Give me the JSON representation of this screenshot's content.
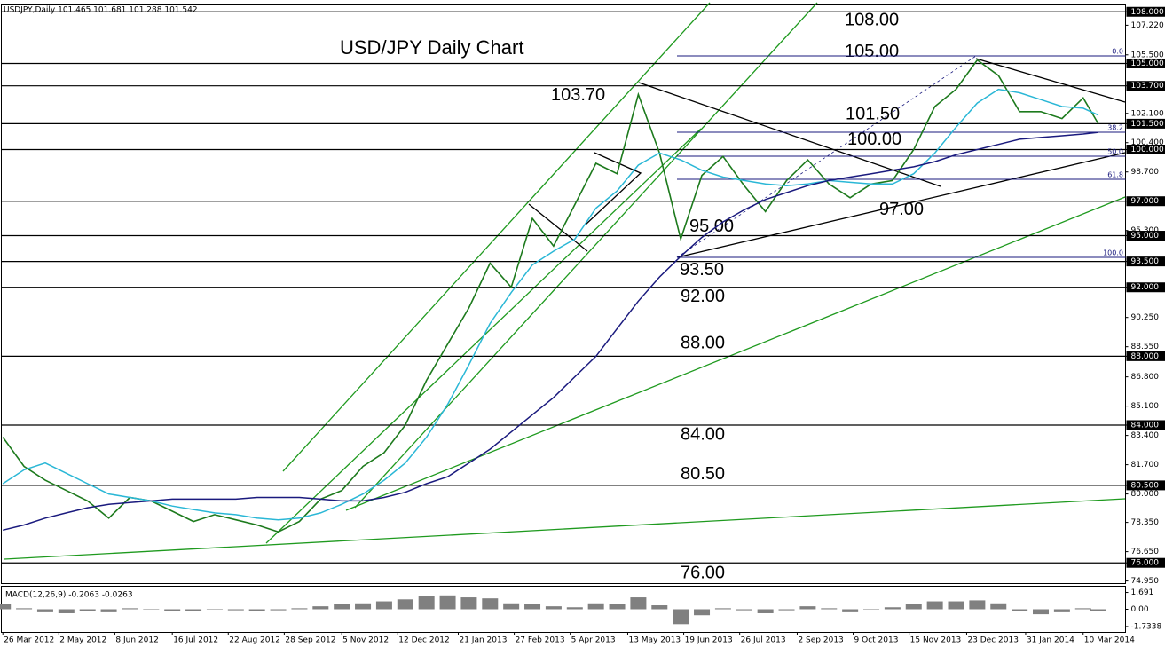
{
  "chart_data": [
    {
      "type": "line",
      "title": "USD/JPY Daily Chart",
      "symbol": "USDJPY,Daily  101.465 101.681 101.288 101.542",
      "x": [
        "2012-03-26",
        "2012-04-09",
        "2012-04-23",
        "2012-05-07",
        "2012-05-21",
        "2012-06-04",
        "2012-06-18",
        "2012-07-02",
        "2012-07-16",
        "2012-07-30",
        "2012-08-13",
        "2012-08-27",
        "2012-09-10",
        "2012-09-24",
        "2012-10-08",
        "2012-10-22",
        "2012-11-05",
        "2012-11-19",
        "2012-12-03",
        "2012-12-17",
        "2012-12-31",
        "2013-01-14",
        "2013-01-28",
        "2013-02-11",
        "2013-02-25",
        "2013-03-11",
        "2013-03-25",
        "2013-04-08",
        "2013-04-22",
        "2013-05-06",
        "2013-05-20",
        "2013-06-03",
        "2013-06-17",
        "2013-07-01",
        "2013-07-15",
        "2013-07-29",
        "2013-08-12",
        "2013-08-26",
        "2013-09-09",
        "2013-09-23",
        "2013-10-07",
        "2013-10-21",
        "2013-11-04",
        "2013-11-18",
        "2013-12-02",
        "2013-12-16",
        "2013-12-30",
        "2014-01-13",
        "2014-01-27",
        "2014-02-10",
        "2014-02-24",
        "2014-03-10",
        "2014-03-20"
      ],
      "series": [
        {
          "color": "#1d7a1d",
          "values": [
            83.3,
            81.6,
            80.8,
            80.2,
            79.6,
            78.6,
            79.8,
            79.6,
            79.0,
            78.4,
            78.8,
            78.5,
            78.2,
            77.8,
            78.4,
            79.7,
            80.2,
            81.6,
            82.4,
            84.0,
            86.6,
            88.7,
            90.8,
            93.4,
            92.0,
            96.0,
            94.4,
            96.8,
            99.2,
            98.6,
            103.2,
            99.8,
            94.8,
            98.5,
            99.6,
            97.9,
            96.4,
            98.2,
            99.4,
            98.0,
            97.2,
            98.0,
            98.2,
            100.0,
            102.5,
            103.5,
            105.2,
            104.3,
            102.2,
            102.2,
            101.8,
            103.0,
            101.5
          ]
        },
        {
          "color": "#2ab7d6",
          "values": [
            80.6,
            81.4,
            81.8,
            81.2,
            80.6,
            80.0,
            79.8,
            79.6,
            79.3,
            79.1,
            78.9,
            78.8,
            78.6,
            78.5,
            78.6,
            78.9,
            79.4,
            80.0,
            80.8,
            81.8,
            83.3,
            85.2,
            87.5,
            89.9,
            91.7,
            93.3,
            94.1,
            94.8,
            96.6,
            97.6,
            99.1,
            99.8,
            99.4,
            98.8,
            98.4,
            98.2,
            98.0,
            97.9,
            98.0,
            98.2,
            98.1,
            98.0,
            98.0,
            98.6,
            99.8,
            101.3,
            102.7,
            103.5,
            103.3,
            102.9,
            102.5,
            102.4,
            102.0
          ]
        },
        {
          "color": "#1a1a7e",
          "values": [
            77.9,
            78.2,
            78.6,
            78.9,
            79.2,
            79.4,
            79.5,
            79.6,
            79.7,
            79.7,
            79.7,
            79.7,
            79.8,
            79.8,
            79.8,
            79.7,
            79.6,
            79.6,
            79.8,
            80.1,
            80.6,
            81.0,
            81.8,
            82.6,
            83.6,
            84.6,
            85.6,
            86.8,
            88.0,
            89.6,
            91.2,
            92.6,
            93.8,
            94.9,
            95.8,
            96.5,
            97.1,
            97.5,
            97.9,
            98.2,
            98.4,
            98.6,
            98.8,
            99.0,
            99.3,
            99.7,
            100.0,
            100.3,
            100.6,
            100.7,
            100.8,
            100.9,
            101.0
          ]
        }
      ],
      "xlim": [
        "2012-03-25",
        "2014-04-07"
      ],
      "ylim": [
        74.8,
        108.4
      ],
      "yticks": [
        {
          "value": 108,
          "label": "108.000"
        },
        {
          "value": 107.22,
          "label": "107.220"
        },
        {
          "value": 105.5,
          "label": "105.500"
        },
        {
          "value": 105,
          "label": "105.000"
        },
        {
          "value": 103.7,
          "label": "103.700"
        },
        {
          "value": 102.1,
          "label": "102.100"
        },
        {
          "value": 101.5,
          "label": "101.500"
        },
        {
          "value": 100.4,
          "label": "100.400"
        },
        {
          "value": 100,
          "label": "100.000"
        },
        {
          "value": 98.7,
          "label": "98.700"
        },
        {
          "value": 97,
          "label": "97.000"
        },
        {
          "value": 95.3,
          "label": "95.300"
        },
        {
          "value": 95,
          "label": "95.000"
        },
        {
          "value": 93.5,
          "label": "93.500"
        },
        {
          "value": 92,
          "label": "92.000"
        },
        {
          "value": 90.25,
          "label": "90.250"
        },
        {
          "value": 88.55,
          "label": "88.550"
        },
        {
          "value": 88,
          "label": "88.000"
        },
        {
          "value": 86.8,
          "label": "86.800"
        },
        {
          "value": 85.1,
          "label": "85.100"
        },
        {
          "value": 84,
          "label": "84.000"
        },
        {
          "value": 83.4,
          "label": "83.400"
        },
        {
          "value": 81.7,
          "label": "81.700"
        },
        {
          "value": 80.5,
          "label": "80.500"
        },
        {
          "value": 80,
          "label": "80.000"
        },
        {
          "value": 78.35,
          "label": "78.350"
        },
        {
          "value": 76.65,
          "label": "76.650"
        },
        {
          "value": 76,
          "label": "76.000"
        },
        {
          "value": 74.95,
          "label": "74.950"
        }
      ],
      "levels": [
        {
          "value": 108,
          "label": "108.00"
        },
        {
          "value": 105,
          "label": "105.00"
        },
        {
          "value": 103.7,
          "label": "103.70"
        },
        {
          "value": 101.5,
          "label": "101.50"
        },
        {
          "value": 100,
          "label": "100.00"
        },
        {
          "value": 97,
          "label": "97.00"
        },
        {
          "value": 95,
          "label": "95.00"
        },
        {
          "value": 93.5,
          "label": "93.50"
        },
        {
          "value": 92,
          "label": "92.00"
        },
        {
          "value": 88,
          "label": "88.00"
        },
        {
          "value": 84,
          "label": "84.00"
        },
        {
          "value": 80.5,
          "label": "80.50"
        },
        {
          "value": 76,
          "label": "76.00"
        }
      ],
      "level_color": "#000000",
      "fib_labels": [
        "0.0",
        "38.2",
        "50.0",
        "61.8",
        "100.0"
      ],
      "fib_color": "#1a1a7e"
    },
    {
      "type": "bar",
      "title": "MACD(12,26,9) -0.2063 -0.0263",
      "x": [
        "2012-03-26",
        "2012-04-09",
        "2012-04-23",
        "2012-05-07",
        "2012-05-21",
        "2012-06-04",
        "2012-06-18",
        "2012-07-02",
        "2012-07-16",
        "2012-07-30",
        "2012-08-13",
        "2012-08-27",
        "2012-09-10",
        "2012-09-24",
        "2012-10-08",
        "2012-10-22",
        "2012-11-05",
        "2012-11-19",
        "2012-12-03",
        "2012-12-17",
        "2012-12-31",
        "2013-01-14",
        "2013-01-28",
        "2013-02-11",
        "2013-02-25",
        "2013-03-11",
        "2013-03-25",
        "2013-04-08",
        "2013-04-22",
        "2013-05-06",
        "2013-05-20",
        "2013-06-03",
        "2013-06-17",
        "2013-07-01",
        "2013-07-15",
        "2013-07-29",
        "2013-08-12",
        "2013-08-26",
        "2013-09-09",
        "2013-09-23",
        "2013-10-07",
        "2013-10-21",
        "2013-11-04",
        "2013-11-18",
        "2013-12-02",
        "2013-12-16",
        "2013-12-30",
        "2014-01-13",
        "2014-01-27",
        "2014-02-10",
        "2014-02-24",
        "2014-03-10",
        "2014-03-20"
      ],
      "values": [
        0.5,
        0.1,
        -0.3,
        -0.4,
        -0.2,
        -0.3,
        0.1,
        0.0,
        -0.2,
        -0.2,
        0.0,
        -0.1,
        -0.2,
        -0.1,
        0.1,
        0.3,
        0.5,
        0.6,
        0.8,
        1.0,
        1.3,
        1.4,
        1.2,
        1.1,
        0.6,
        0.5,
        0.3,
        0.2,
        0.6,
        0.5,
        1.2,
        0.4,
        -1.5,
        -0.6,
        0.1,
        -0.1,
        -0.4,
        -0.1,
        0.3,
        0.1,
        -0.3,
        0.0,
        0.2,
        0.5,
        0.8,
        0.8,
        0.9,
        0.6,
        -0.2,
        -0.5,
        -0.3,
        0.1,
        -0.2
      ],
      "color": "#808080",
      "xlim": [
        "2012-03-25",
        "2014-04-07"
      ],
      "ylim": [
        -2.32,
        2.32
      ],
      "yticks": [
        1.691,
        {
          "value": 0,
          "label": "0.00"
        },
        -1.7338
      ],
      "xticks": [
        {
          "value": "2012-03-26",
          "label": "26 Mar 2012"
        },
        {
          "value": "2012-05-02",
          "label": "2 May 2012"
        },
        {
          "value": "2012-06-08",
          "label": "8 Jun 2012"
        },
        {
          "value": "2012-07-16",
          "label": "16 Jul 2012"
        },
        {
          "value": "2012-08-22",
          "label": "22 Aug 2012"
        },
        {
          "value": "2012-09-28",
          "label": "28 Sep 2012"
        },
        {
          "value": "2012-11-05",
          "label": "5 Nov 2012"
        },
        {
          "value": "2012-12-12",
          "label": "12 Dec 2012"
        },
        {
          "value": "2013-01-21",
          "label": "21 Jan 2013"
        },
        {
          "value": "2013-02-27",
          "label": "27 Feb 2013"
        },
        {
          "value": "2013-04-05",
          "label": "5 Apr 2013"
        },
        {
          "value": "2013-05-13",
          "label": "13 May 2013"
        },
        {
          "value": "2013-06-19",
          "label": "19 Jun 2013"
        },
        {
          "value": "2013-07-26",
          "label": "26 Jul 2013"
        },
        {
          "value": "2013-09-02",
          "label": "2 Sep 2013"
        },
        {
          "value": "2013-10-09",
          "label": "9 Oct 2013"
        },
        {
          "value": "2013-11-15",
          "label": "15 Nov 2013"
        },
        {
          "value": "2013-12-23",
          "label": "23 Dec 2013"
        },
        {
          "value": "2014-01-31",
          "label": "31 Jan 2014"
        },
        {
          "value": "2014-03-10",
          "label": "10 Mar 2014"
        }
      ]
    }
  ]
}
